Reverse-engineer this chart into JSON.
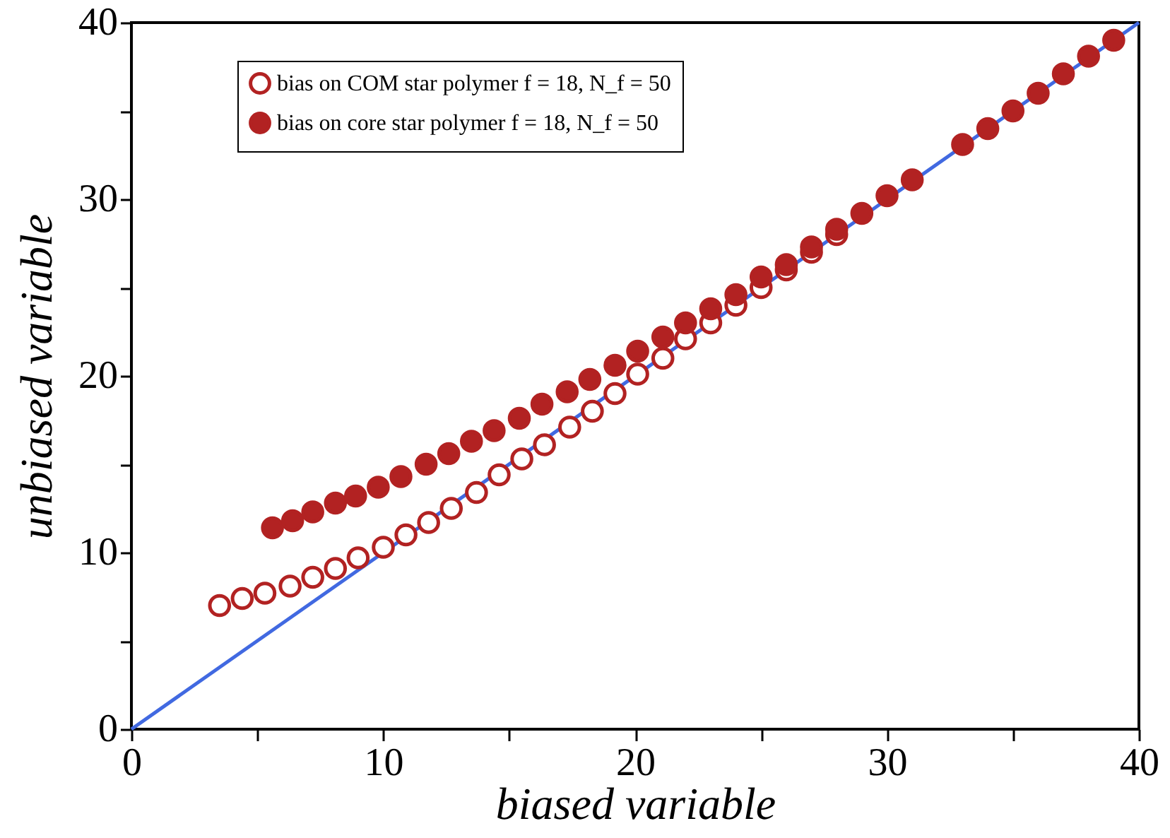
{
  "chart_data": {
    "type": "scatter",
    "xlabel": "biased variable",
    "ylabel": "unbiased variable",
    "xlim": [
      0,
      40
    ],
    "ylim": [
      0,
      40
    ],
    "xticks": [
      0,
      {
        "value": 5,
        "label": null
      },
      10,
      {
        "value": 15,
        "label": null
      },
      20,
      {
        "value": 25,
        "label": null
      },
      30,
      {
        "value": 35,
        "label": null
      },
      40
    ],
    "yticks": [
      0,
      {
        "value": 5,
        "label": null
      },
      10,
      {
        "value": 15,
        "label": null
      },
      20,
      {
        "value": 25,
        "label": null
      },
      30,
      {
        "value": 35,
        "label": null
      },
      40
    ],
    "grid": false,
    "legend": "top left",
    "marker": "circle",
    "series": [
      {
        "name": "bias on COM star polymer f = 18, N_f = 50",
        "color": "#b22222",
        "x": [
          3.5,
          4.4,
          5.3,
          6.3,
          7.2,
          8.1,
          9.0,
          10.0,
          10.9,
          11.8,
          12.7,
          13.7,
          14.6,
          15.5,
          16.4,
          17.4,
          18.3,
          19.2,
          20.1,
          21.1,
          22.0,
          23.0,
          24.0,
          25.0,
          26.0,
          27.0,
          28.0
        ],
        "values": [
          7.0,
          7.4,
          7.7,
          8.1,
          8.6,
          9.1,
          9.7,
          10.3,
          11.0,
          11.7,
          12.5,
          13.4,
          14.4,
          15.3,
          16.1,
          17.1,
          18.0,
          19.0,
          20.1,
          21.0,
          22.1,
          23.0,
          24.0,
          25.0,
          26.0,
          27.0,
          28.0
        ]
      },
      {
        "name": "bias on core   star polymer f = 18, N_f = 50",
        "color": "#b22222",
        "x": [
          5.6,
          6.4,
          7.2,
          8.1,
          8.9,
          9.8,
          10.7,
          11.7,
          12.6,
          13.5,
          14.4,
          15.4,
          16.3,
          17.3,
          18.2,
          19.2,
          20.1,
          21.1,
          22.0,
          23.0,
          24.0,
          25.0,
          26.0,
          27.0,
          28.0,
          29.0,
          30.0,
          31.0,
          33.0,
          34.0,
          35.0,
          36.0,
          37.0,
          38.0,
          39.0
        ],
        "values": [
          11.4,
          11.8,
          12.3,
          12.8,
          13.2,
          13.7,
          14.3,
          15.0,
          15.6,
          16.3,
          16.9,
          17.6,
          18.4,
          19.1,
          19.8,
          20.6,
          21.4,
          22.2,
          23.0,
          23.8,
          24.6,
          25.6,
          26.3,
          27.3,
          28.3,
          29.2,
          30.2,
          31.1,
          33.1,
          34.0,
          35.0,
          36.0,
          37.1,
          38.1,
          39.0
        ]
      },
      {
        "type": "line",
        "color": "#4169e1",
        "line_style": "solid",
        "marker": "none",
        "x": [
          0,
          40
        ],
        "values": [
          0,
          40
        ]
      }
    ]
  }
}
